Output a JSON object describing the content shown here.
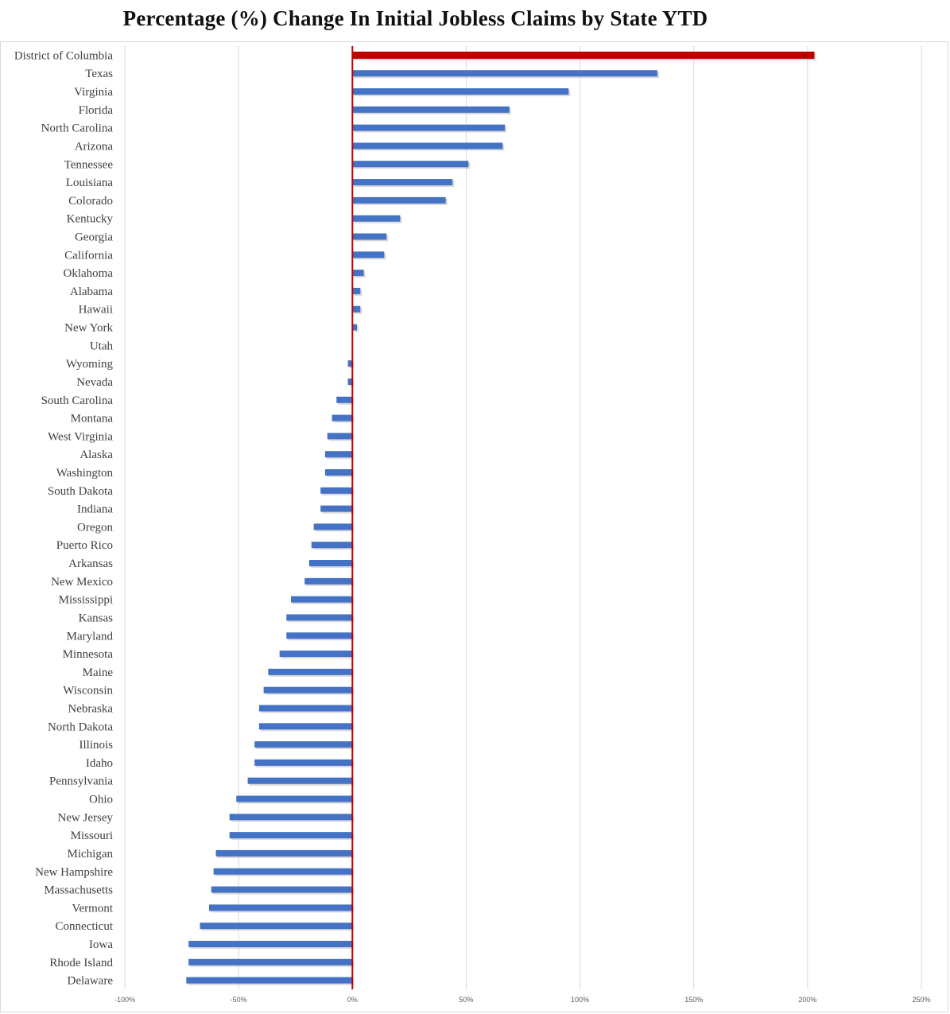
{
  "chart_data": {
    "type": "bar",
    "orientation": "horizontal",
    "title": "Percentage (%) Change In Initial Jobless Claims by State YTD",
    "xlabel": "",
    "ylabel": "",
    "xlim": [
      -100,
      250
    ],
    "x_ticks": [
      -100,
      -50,
      0,
      50,
      100,
      150,
      200,
      250
    ],
    "x_tick_labels": [
      "-100%",
      "-50%",
      "0%",
      "50%",
      "100%",
      "150%",
      "200%",
      "250%"
    ],
    "grid": "vertical",
    "legend": "none",
    "colors": {
      "bar": "#4472c4",
      "highlight": "#c00000",
      "zero_line": "#c00000",
      "grid": "#d9d9d9"
    },
    "highlight_category": "District of Columbia",
    "categories": [
      "District of Columbia",
      "Texas",
      "Virginia",
      "Florida",
      "North Carolina",
      "Arizona",
      "Tennessee",
      "Louisiana",
      "Colorado",
      "Kentucky",
      "Georgia",
      "California",
      "Oklahoma",
      "Alabama",
      "Hawaii",
      "New York",
      "Utah",
      "Wyoming",
      "Nevada",
      "South Carolina",
      "Montana",
      "West Virginia",
      "Alaska",
      "Washington",
      "South Dakota",
      "Indiana",
      "Oregon",
      "Puerto Rico",
      "Arkansas",
      "New Mexico",
      "Mississippi",
      "Kansas",
      "Maryland",
      "Minnesota",
      "Maine",
      "Wisconsin",
      "Nebraska",
      "North Dakota",
      "Illinois",
      "Idaho",
      "Pennsylvania",
      "Ohio",
      "New Jersey",
      "Missouri",
      "Michigan",
      "New Hampshire",
      "Massachusetts",
      "Vermont",
      "Connecticut",
      "Iowa",
      "Rhode Island",
      "Delaware"
    ],
    "values": [
      203,
      134,
      95,
      69,
      67,
      66,
      51,
      44,
      41,
      21,
      15,
      14,
      5,
      3.5,
      3.5,
      2,
      0,
      -2,
      -2,
      -7,
      -9,
      -11,
      -12,
      -12,
      -14,
      -14,
      -17,
      -18,
      -19,
      -21,
      -27,
      -29,
      -29,
      -32,
      -37,
      -39,
      -41,
      -41,
      -43,
      -43,
      -46,
      -51,
      -54,
      -54,
      -60,
      -61,
      -62,
      -63,
      -67,
      -72,
      -72,
      -73
    ]
  }
}
